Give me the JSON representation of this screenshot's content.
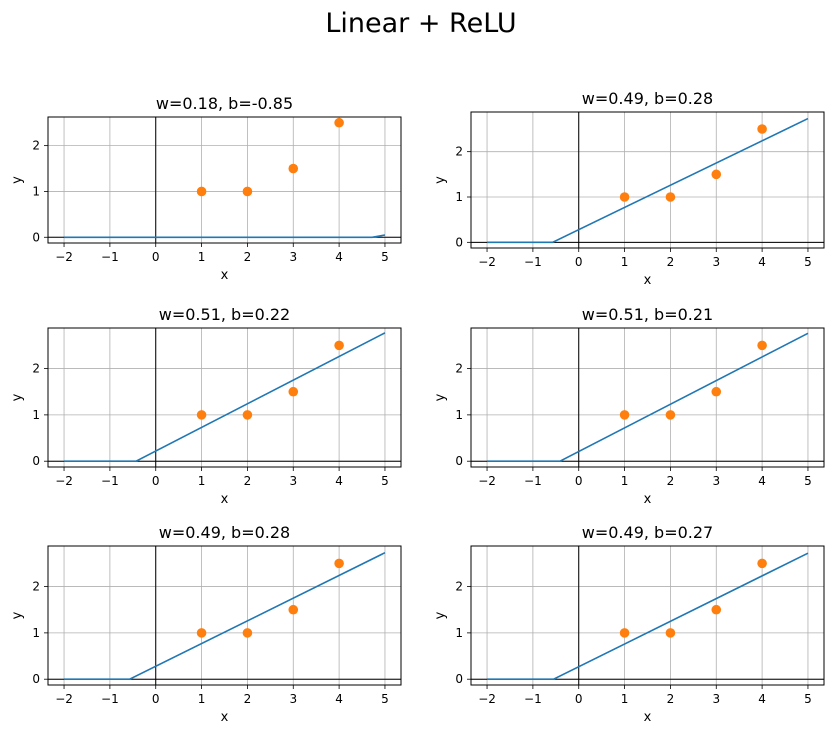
{
  "figure": {
    "title": "Linear + ReLU"
  },
  "colors": {
    "line": "#1f77b4",
    "points": "#ff7f0e",
    "grid": "#b0b0b0",
    "axes_lines": "#000000"
  },
  "chart_data": [
    {
      "type": "line",
      "title": "w=0.18, b=-0.85",
      "xlabel": "x",
      "ylabel": "y",
      "xlim": [
        -2.35,
        5.35
      ],
      "ylim": [
        -0.125,
        2.625
      ],
      "xticks": [
        -2,
        -1,
        0,
        1,
        2,
        3,
        4,
        5
      ],
      "xtick_labels": [
        "−2",
        "−1",
        "0",
        "1",
        "2",
        "3",
        "4",
        "5"
      ],
      "yticks": [
        0,
        1,
        2
      ],
      "ytick_labels": [
        "0",
        "1",
        "2"
      ],
      "grid": true,
      "series": [
        {
          "kind": "line",
          "x": [
            -2,
            4.72,
            5
          ],
          "y": [
            0,
            0,
            0.05
          ]
        },
        {
          "kind": "scatter",
          "x": [
            1,
            2,
            3,
            4
          ],
          "y": [
            1,
            1,
            1.5,
            2.5
          ]
        }
      ]
    },
    {
      "type": "line",
      "title": "w=0.49, b=0.28",
      "xlabel": "x",
      "ylabel": "y",
      "xlim": [
        -2.35,
        5.35
      ],
      "ylim": [
        -0.125,
        2.875
      ],
      "xticks": [
        -2,
        -1,
        0,
        1,
        2,
        3,
        4,
        5
      ],
      "xtick_labels": [
        "−2",
        "−1",
        "0",
        "1",
        "2",
        "3",
        "4",
        "5"
      ],
      "yticks": [
        0,
        1,
        2
      ],
      "ytick_labels": [
        "0",
        "1",
        "2"
      ],
      "grid": true,
      "series": [
        {
          "kind": "line",
          "x": [
            -2,
            -0.57,
            5
          ],
          "y": [
            0,
            0,
            2.73
          ]
        },
        {
          "kind": "scatter",
          "x": [
            1,
            2,
            3,
            4
          ],
          "y": [
            1,
            1,
            1.5,
            2.5
          ]
        }
      ]
    },
    {
      "type": "line",
      "title": "w=0.51, b=0.22",
      "xlabel": "x",
      "ylabel": "y",
      "xlim": [
        -2.35,
        5.35
      ],
      "ylim": [
        -0.125,
        2.875
      ],
      "xticks": [
        -2,
        -1,
        0,
        1,
        2,
        3,
        4,
        5
      ],
      "xtick_labels": [
        "−2",
        "−1",
        "0",
        "1",
        "2",
        "3",
        "4",
        "5"
      ],
      "yticks": [
        0,
        1,
        2
      ],
      "ytick_labels": [
        "0",
        "1",
        "2"
      ],
      "grid": true,
      "series": [
        {
          "kind": "line",
          "x": [
            -2,
            -0.43,
            5
          ],
          "y": [
            0,
            0,
            2.77
          ]
        },
        {
          "kind": "scatter",
          "x": [
            1,
            2,
            3,
            4
          ],
          "y": [
            1,
            1,
            1.5,
            2.5
          ]
        }
      ]
    },
    {
      "type": "line",
      "title": "w=0.51, b=0.21",
      "xlabel": "x",
      "ylabel": "y",
      "xlim": [
        -2.35,
        5.35
      ],
      "ylim": [
        -0.125,
        2.875
      ],
      "xticks": [
        -2,
        -1,
        0,
        1,
        2,
        3,
        4,
        5
      ],
      "xtick_labels": [
        "−2",
        "−1",
        "0",
        "1",
        "2",
        "3",
        "4",
        "5"
      ],
      "yticks": [
        0,
        1,
        2
      ],
      "ytick_labels": [
        "0",
        "1",
        "2"
      ],
      "grid": true,
      "series": [
        {
          "kind": "line",
          "x": [
            -2,
            -0.41,
            5
          ],
          "y": [
            0,
            0,
            2.76
          ]
        },
        {
          "kind": "scatter",
          "x": [
            1,
            2,
            3,
            4
          ],
          "y": [
            1,
            1,
            1.5,
            2.5
          ]
        }
      ]
    },
    {
      "type": "line",
      "title": "w=0.49, b=0.28",
      "xlabel": "x",
      "ylabel": "y",
      "xlim": [
        -2.35,
        5.35
      ],
      "ylim": [
        -0.125,
        2.875
      ],
      "xticks": [
        -2,
        -1,
        0,
        1,
        2,
        3,
        4,
        5
      ],
      "xtick_labels": [
        "−2",
        "−1",
        "0",
        "1",
        "2",
        "3",
        "4",
        "5"
      ],
      "yticks": [
        0,
        1,
        2
      ],
      "ytick_labels": [
        "0",
        "1",
        "2"
      ],
      "grid": true,
      "series": [
        {
          "kind": "line",
          "x": [
            -2,
            -0.57,
            5
          ],
          "y": [
            0,
            0,
            2.73
          ]
        },
        {
          "kind": "scatter",
          "x": [
            1,
            2,
            3,
            4
          ],
          "y": [
            1,
            1,
            1.5,
            2.5
          ]
        }
      ]
    },
    {
      "type": "line",
      "title": "w=0.49, b=0.27",
      "xlabel": "x",
      "ylabel": "y",
      "xlim": [
        -2.35,
        5.35
      ],
      "ylim": [
        -0.125,
        2.875
      ],
      "xticks": [
        -2,
        -1,
        0,
        1,
        2,
        3,
        4,
        5
      ],
      "xtick_labels": [
        "−2",
        "−1",
        "0",
        "1",
        "2",
        "3",
        "4",
        "5"
      ],
      "yticks": [
        0,
        1,
        2
      ],
      "ytick_labels": [
        "0",
        "1",
        "2"
      ],
      "grid": true,
      "series": [
        {
          "kind": "line",
          "x": [
            -2,
            -0.55,
            5
          ],
          "y": [
            0,
            0,
            2.72
          ]
        },
        {
          "kind": "scatter",
          "x": [
            1,
            2,
            3,
            4
          ],
          "y": [
            1,
            1,
            1.5,
            2.5
          ]
        }
      ]
    }
  ]
}
